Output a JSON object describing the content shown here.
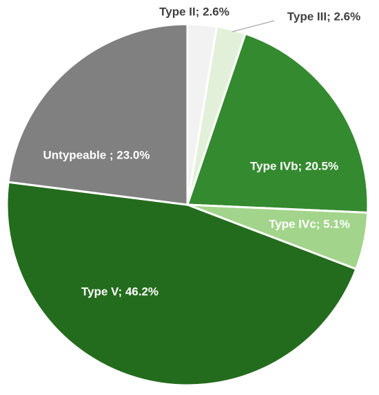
{
  "chart_data": {
    "type": "pie",
    "categories": [
      "Type II; 2.6%",
      "Type III; 2.6%",
      "Type IVb; 20.5%",
      "Type IVc; 5.1%",
      "Type V; 46.2%",
      "Untypeable ; 23.0%"
    ],
    "values": [
      2.6,
      2.6,
      20.5,
      5.1,
      46.2,
      23.0
    ],
    "colors": [
      "#f2f2f2",
      "#e2f0d9",
      "#348a2f",
      "#a3d48b",
      "#246c1d",
      "#808080"
    ]
  }
}
